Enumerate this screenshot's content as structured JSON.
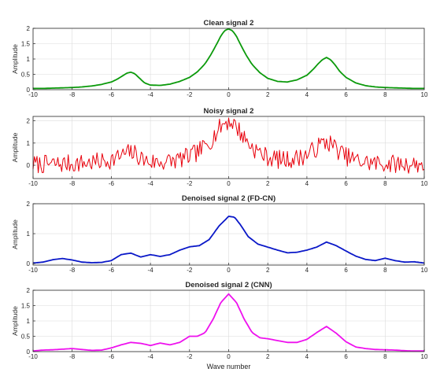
{
  "chart_data": [
    {
      "type": "line",
      "title": "Clean signal 2",
      "ylabel": "Amplitude",
      "xlabel": "",
      "xlim": [
        -10,
        10
      ],
      "ylim": [
        0,
        2
      ],
      "xticks": [
        -10,
        -8,
        -6,
        -4,
        -2,
        0,
        2,
        4,
        6,
        8,
        10
      ],
      "yticks": [
        0,
        0.5,
        1,
        1.5,
        2
      ],
      "grid": true,
      "color": "#0b9a0b",
      "series": [
        {
          "x": [
            -10,
            -9.5,
            -9,
            -8.5,
            -8,
            -7.5,
            -7,
            -6.5,
            -6,
            -5.7,
            -5.4,
            -5.2,
            -5,
            -4.8,
            -4.6,
            -4.3,
            -4,
            -3.5,
            -3,
            -2.5,
            -2,
            -1.6,
            -1.2,
            -0.9,
            -0.6,
            -0.4,
            -0.2,
            0,
            0.2,
            0.4,
            0.6,
            0.9,
            1.2,
            1.6,
            2,
            2.5,
            3,
            3.5,
            4,
            4.3,
            4.6,
            4.8,
            5,
            5.2,
            5.4,
            5.7,
            6,
            6.5,
            7,
            7.5,
            8,
            8.5,
            9,
            9.5,
            10
          ],
          "y": [
            0.04,
            0.04,
            0.05,
            0.06,
            0.07,
            0.09,
            0.12,
            0.17,
            0.25,
            0.34,
            0.46,
            0.54,
            0.57,
            0.52,
            0.4,
            0.22,
            0.15,
            0.14,
            0.18,
            0.27,
            0.4,
            0.58,
            0.85,
            1.15,
            1.5,
            1.75,
            1.93,
            1.98,
            1.92,
            1.74,
            1.48,
            1.12,
            0.82,
            0.55,
            0.37,
            0.27,
            0.25,
            0.32,
            0.47,
            0.65,
            0.86,
            0.98,
            1.05,
            0.98,
            0.84,
            0.58,
            0.4,
            0.22,
            0.13,
            0.09,
            0.07,
            0.06,
            0.05,
            0.04,
            0.04
          ]
        }
      ]
    },
    {
      "type": "line",
      "title": "Noisy signal 2",
      "ylabel": "Amplitude",
      "xlabel": "",
      "xlim": [
        -10,
        10
      ],
      "ylim": [
        -0.6,
        2.2
      ],
      "xticks": [
        -10,
        -8,
        -6,
        -4,
        -2,
        0,
        2,
        4,
        6,
        8,
        10
      ],
      "yticks": [
        0,
        1,
        2
      ],
      "grid": true,
      "color": "#e8000b",
      "noise_amplitude": 0.42,
      "noise_seed": 7,
      "series": [
        {
          "x": [
            -10,
            -9.5,
            -9,
            -8.5,
            -8,
            -7.5,
            -7,
            -6.5,
            -6,
            -5.7,
            -5.4,
            -5.2,
            -5,
            -4.8,
            -4.6,
            -4.3,
            -4,
            -3.5,
            -3,
            -2.5,
            -2,
            -1.6,
            -1.2,
            -0.9,
            -0.6,
            -0.4,
            -0.2,
            0,
            0.2,
            0.4,
            0.6,
            0.9,
            1.2,
            1.6,
            2,
            2.5,
            3,
            3.5,
            4,
            4.3,
            4.6,
            4.8,
            5,
            5.2,
            5.4,
            5.7,
            6,
            6.5,
            7,
            7.5,
            8,
            8.5,
            9,
            9.5,
            10
          ],
          "y": [
            0.04,
            0.04,
            0.05,
            0.06,
            0.07,
            0.09,
            0.12,
            0.17,
            0.25,
            0.34,
            0.46,
            0.54,
            0.57,
            0.52,
            0.4,
            0.22,
            0.15,
            0.14,
            0.18,
            0.27,
            0.4,
            0.58,
            0.85,
            1.15,
            1.5,
            1.75,
            1.93,
            1.98,
            1.92,
            1.74,
            1.48,
            1.12,
            0.82,
            0.55,
            0.37,
            0.27,
            0.25,
            0.32,
            0.47,
            0.65,
            0.86,
            0.98,
            1.05,
            0.98,
            0.84,
            0.58,
            0.4,
            0.22,
            0.13,
            0.09,
            0.07,
            0.06,
            0.05,
            0.04,
            0.04
          ]
        }
      ]
    },
    {
      "type": "line",
      "title": "Denoised signal 2 (FD-CN)",
      "ylabel": "Amplitude",
      "xlabel": "",
      "xlim": [
        -10,
        10
      ],
      "ylim": [
        -0.05,
        2
      ],
      "xticks": [
        -10,
        -8,
        -6,
        -4,
        -2,
        0,
        2,
        4,
        6,
        8,
        10
      ],
      "yticks": [
        0,
        1,
        2
      ],
      "grid": true,
      "color": "#0a18c8",
      "series": [
        {
          "x": [
            -10,
            -9.5,
            -9,
            -8.5,
            -8,
            -7.5,
            -7,
            -6.5,
            -6,
            -5.5,
            -5,
            -4.5,
            -4,
            -3.5,
            -3,
            -2.5,
            -2,
            -1.5,
            -1,
            -0.5,
            0,
            0.3,
            0.6,
            1,
            1.5,
            2,
            2.5,
            3,
            3.5,
            4,
            4.5,
            5,
            5.5,
            6,
            6.5,
            7,
            7.5,
            8,
            8.5,
            9,
            9.5,
            10
          ],
          "y": [
            0.02,
            0.05,
            0.13,
            0.17,
            0.12,
            0.05,
            0.03,
            0.04,
            0.1,
            0.3,
            0.35,
            0.22,
            0.3,
            0.24,
            0.3,
            0.45,
            0.56,
            0.6,
            0.8,
            1.25,
            1.58,
            1.55,
            1.3,
            0.9,
            0.65,
            0.55,
            0.45,
            0.36,
            0.38,
            0.45,
            0.55,
            0.72,
            0.6,
            0.42,
            0.25,
            0.14,
            0.1,
            0.18,
            0.1,
            0.05,
            0.06,
            0.02
          ]
        }
      ]
    },
    {
      "type": "line",
      "title": "Denoised signal 2 (CNN)",
      "ylabel": "Amplitude",
      "xlabel": "Wave number",
      "xlim": [
        -10,
        10
      ],
      "ylim": [
        0,
        2
      ],
      "xticks": [
        -10,
        -8,
        -6,
        -4,
        -2,
        0,
        2,
        4,
        6,
        8,
        10
      ],
      "yticks": [
        0,
        0.5,
        1,
        1.5,
        2
      ],
      "grid": true,
      "color": "#ee11ee",
      "series": [
        {
          "x": [
            -10,
            -9.5,
            -9,
            -8.5,
            -8,
            -7.5,
            -7,
            -6.5,
            -6,
            -5.5,
            -5,
            -4.5,
            -4,
            -3.5,
            -3,
            -2.5,
            -2,
            -1.6,
            -1.2,
            -0.8,
            -0.4,
            0,
            0.4,
            0.8,
            1.2,
            1.6,
            2,
            2.5,
            3,
            3.5,
            4,
            4.5,
            5,
            5.5,
            6,
            6.5,
            7,
            7.5,
            8,
            8.5,
            9,
            9.5,
            10
          ],
          "y": [
            0.02,
            0.05,
            0.06,
            0.08,
            0.1,
            0.07,
            0.04,
            0.05,
            0.12,
            0.22,
            0.3,
            0.27,
            0.2,
            0.28,
            0.22,
            0.3,
            0.5,
            0.5,
            0.62,
            1.05,
            1.6,
            1.88,
            1.6,
            1.05,
            0.62,
            0.45,
            0.42,
            0.36,
            0.3,
            0.3,
            0.4,
            0.62,
            0.82,
            0.6,
            0.32,
            0.15,
            0.1,
            0.07,
            0.06,
            0.05,
            0.03,
            0.02,
            0.02
          ]
        }
      ]
    }
  ]
}
